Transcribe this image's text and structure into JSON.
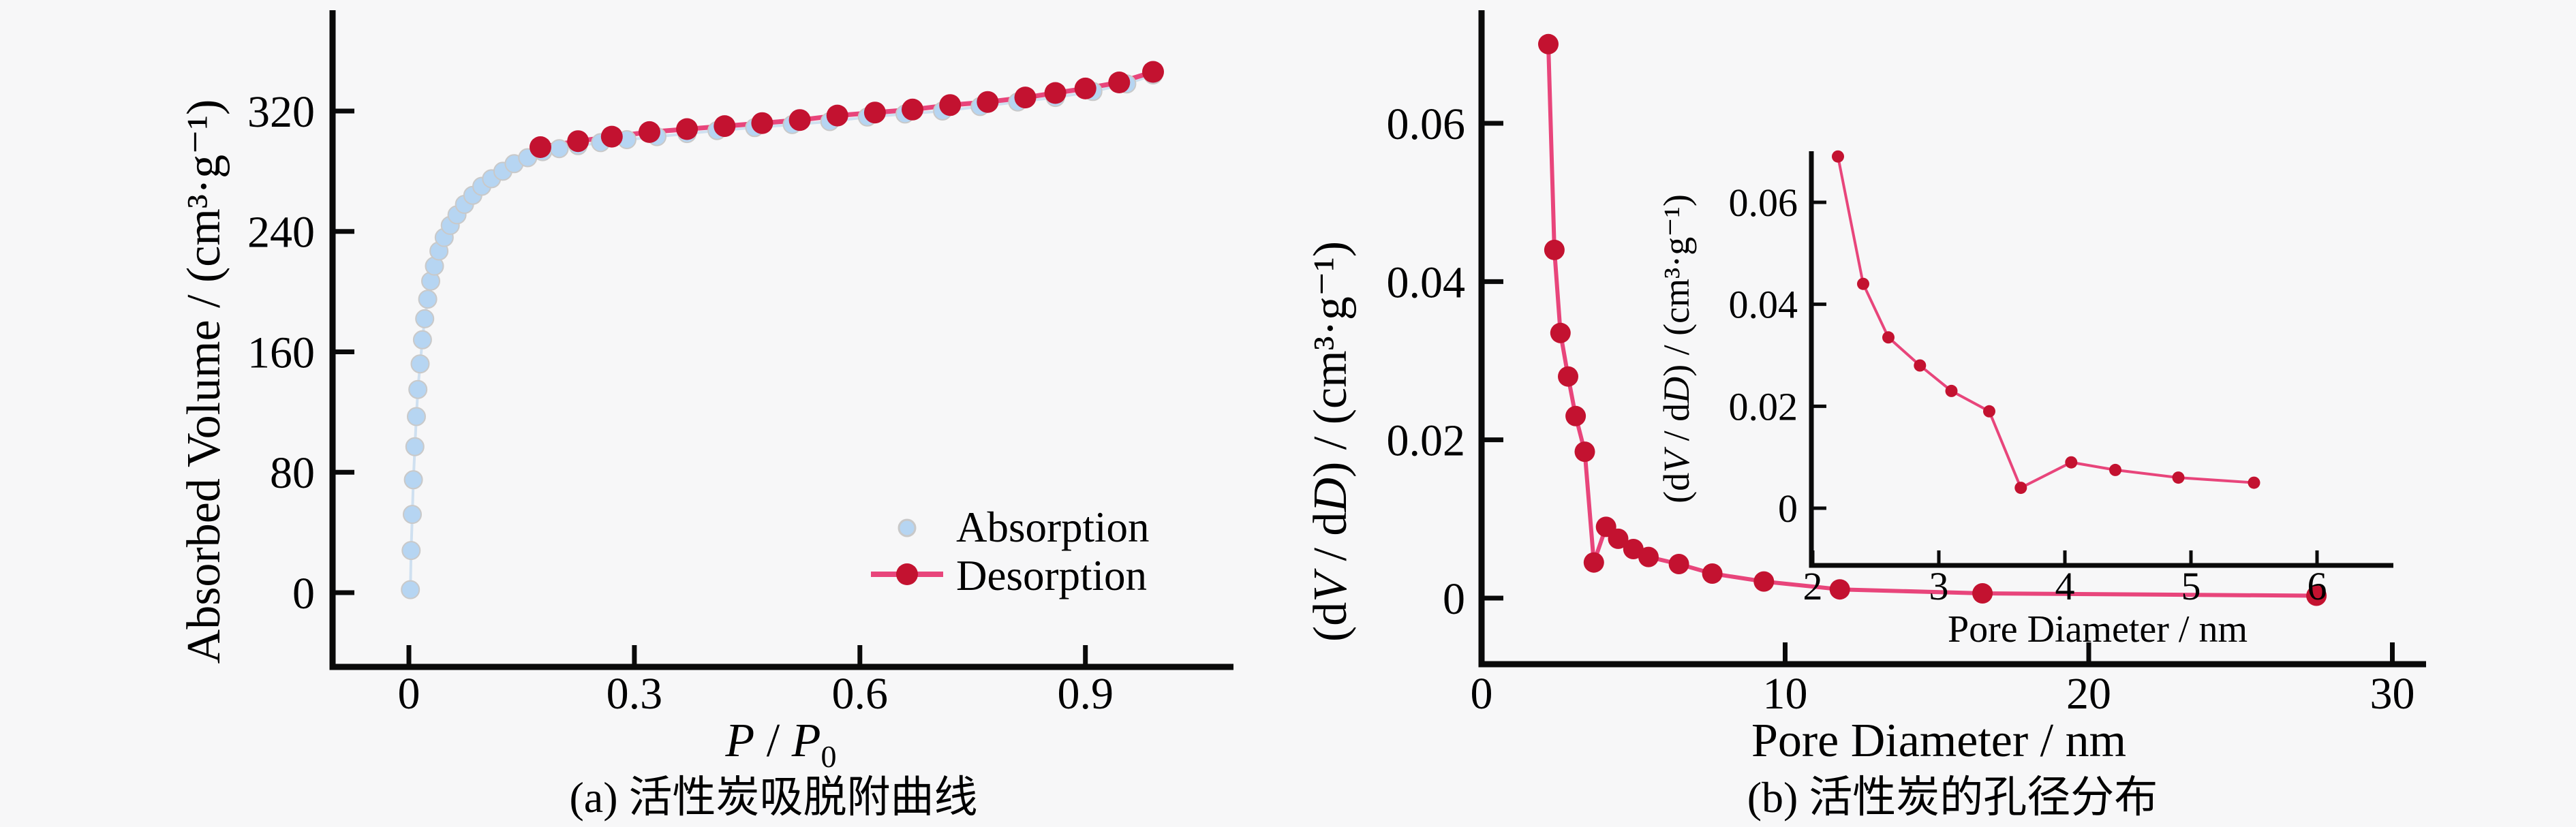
{
  "page": {
    "background": "#f7f7f8"
  },
  "colors": {
    "absorption_marker": "#b6d5f2",
    "absorption_marker_edge": "#c9c9c9",
    "absorption_line": "#cfe0f0",
    "desorption_marker": "#c31230",
    "desorption_line": "#e8457b",
    "axis": "#0a0a0a",
    "text": "#000000",
    "background": "#f7f7f8"
  },
  "charts": {
    "a": {
      "caption": "(a) 活性炭吸脱附曲线",
      "ylabel": "Absorbed Volume / (cm³·g⁻¹)",
      "xlabel": {
        "p1": "P",
        "sep": " / ",
        "p2": "P",
        "sub": "0"
      },
      "legend": {
        "absorption": "Absorption",
        "desorption": "Desorption"
      }
    },
    "b": {
      "caption": "(b) 活性炭的孔径分布",
      "xlabel": "Pore Diameter / nm",
      "inset_xlabel": "Pore Diameter / nm",
      "ylabel": {
        "p1": "(d",
        "v": "V",
        "p2": " / d",
        "d": "D",
        "p3": ") / (cm³·g⁻¹)"
      }
    }
  },
  "chart_data": [
    {
      "id": "a",
      "type": "scatter",
      "title": "(a) 活性炭吸脱附曲线",
      "xlabel": "P / P₀",
      "ylabel": "Absorbed Volume / (cm³·g⁻¹)",
      "xlim": [
        -0.1,
        1.12
      ],
      "ylim": [
        -50,
        395
      ],
      "grid": false,
      "legend_position": "lower right",
      "xtick_values": [
        0,
        0.3,
        0.6,
        0.9
      ],
      "xtick_labels": [
        "0",
        "0.3",
        "0.6",
        "0.9"
      ],
      "ytick_values": [
        0,
        80,
        160,
        240,
        320
      ],
      "ytick_labels": [
        "0",
        "80",
        "160",
        "240",
        "320"
      ],
      "series": [
        {
          "name": "Absorption",
          "marker": "circle",
          "color": "#b6d5f2",
          "line_color": "#cfe0f0",
          "points": [
            [
              0.002,
              2
            ],
            [
              0.003,
              28
            ],
            [
              0.0045,
              52
            ],
            [
              0.006,
              75
            ],
            [
              0.008,
              97
            ],
            [
              0.01,
              117
            ],
            [
              0.012,
              135
            ],
            [
              0.015,
              152
            ],
            [
              0.018,
              168
            ],
            [
              0.021,
              182
            ],
            [
              0.025,
              195
            ],
            [
              0.029,
              207
            ],
            [
              0.034,
              217
            ],
            [
              0.04,
              227
            ],
            [
              0.047,
              236
            ],
            [
              0.055,
              244
            ],
            [
              0.064,
              251
            ],
            [
              0.074,
              258
            ],
            [
              0.085,
              264
            ],
            [
              0.097,
              270
            ],
            [
              0.11,
              275
            ],
            [
              0.125,
              280
            ],
            [
              0.14,
              285
            ],
            [
              0.158,
              289
            ],
            [
              0.178,
              293
            ],
            [
              0.2,
              295
            ],
            [
              0.225,
              297
            ],
            [
              0.255,
              299
            ],
            [
              0.29,
              301
            ],
            [
              0.33,
              303
            ],
            [
              0.37,
              305
            ],
            [
              0.41,
              307
            ],
            [
              0.46,
              309
            ],
            [
              0.51,
              311
            ],
            [
              0.56,
              313
            ],
            [
              0.61,
              316
            ],
            [
              0.66,
              318
            ],
            [
              0.71,
              320
            ],
            [
              0.76,
              323
            ],
            [
              0.81,
              326
            ],
            [
              0.86,
              329
            ],
            [
              0.91,
              333
            ],
            [
              0.955,
              338
            ],
            [
              0.99,
              344
            ]
          ]
        },
        {
          "name": "Desorption",
          "marker": "circle",
          "color": "#c31230",
          "line_color": "#e8457b",
          "points": [
            [
              0.175,
              296
            ],
            [
              0.225,
              300
            ],
            [
              0.27,
              303
            ],
            [
              0.32,
              306
            ],
            [
              0.37,
              308
            ],
            [
              0.42,
              310
            ],
            [
              0.47,
              312
            ],
            [
              0.52,
              314
            ],
            [
              0.57,
              317
            ],
            [
              0.62,
              319
            ],
            [
              0.67,
              321
            ],
            [
              0.72,
              324
            ],
            [
              0.77,
              326
            ],
            [
              0.82,
              329
            ],
            [
              0.86,
              332
            ],
            [
              0.9,
              335
            ],
            [
              0.945,
              339
            ],
            [
              0.99,
              346
            ]
          ]
        }
      ]
    },
    {
      "id": "b",
      "type": "line",
      "title": "(b) 活性炭的孔径分布",
      "xlabel": "Pore Diameter / nm",
      "ylabel": "(dV / dD) / (cm³·g⁻¹)",
      "xlim": [
        0,
        31
      ],
      "ylim": [
        -0.009,
        0.0745
      ],
      "grid": false,
      "xtick_values": [
        0,
        10,
        20,
        30
      ],
      "xtick_labels": [
        "0",
        "10",
        "20",
        "30"
      ],
      "ytick_values": [
        0,
        0.02,
        0.04,
        0.06
      ],
      "ytick_labels": [
        "0",
        "0.02",
        "0.04",
        "0.06"
      ],
      "series": [
        {
          "name": "dV/dD",
          "marker": "circle",
          "color": "#c31230",
          "line_color": "#e8457b",
          "points": [
            [
              2.2,
              0.07
            ],
            [
              2.4,
              0.044
            ],
            [
              2.6,
              0.0335
            ],
            [
              2.85,
              0.028
            ],
            [
              3.1,
              0.023
            ],
            [
              3.4,
              0.0185
            ],
            [
              3.7,
              0.0045
            ],
            [
              4.1,
              0.009
            ],
            [
              4.5,
              0.0075
            ],
            [
              5.0,
              0.0062
            ],
            [
              5.5,
              0.0052
            ],
            [
              6.5,
              0.0043
            ],
            [
              7.6,
              0.0031
            ],
            [
              9.3,
              0.0021
            ],
            [
              11.8,
              0.0011
            ],
            [
              16.5,
              0.0006
            ],
            [
              27.5,
              0.0003
            ]
          ]
        }
      ],
      "inset": {
        "xlabel": "Pore Diameter / nm",
        "ylabel": "(dV / dD) / (cm³·g⁻¹)",
        "xlim": [
          2,
          6.2
        ],
        "ylim": [
          -0.011,
          0.075
        ],
        "xtick_values": [
          2,
          3,
          4,
          5,
          6
        ],
        "xtick_labels": [
          "2",
          "3",
          "4",
          "5",
          "6"
        ],
        "ytick_values": [
          0,
          0.02,
          0.04,
          0.06
        ],
        "ytick_labels": [
          "0",
          "0.02",
          "0.04",
          "0.06"
        ],
        "series": [
          {
            "name": "dV/dD",
            "marker": "circle",
            "color": "#c31230",
            "line_color": "#e8457b",
            "points": [
              [
                2.2,
                0.069
              ],
              [
                2.4,
                0.044
              ],
              [
                2.6,
                0.0335
              ],
              [
                2.85,
                0.028
              ],
              [
                3.1,
                0.023
              ],
              [
                3.4,
                0.019
              ],
              [
                3.65,
                0.004
              ],
              [
                4.05,
                0.009
              ],
              [
                4.4,
                0.0075
              ],
              [
                4.9,
                0.006
              ],
              [
                5.5,
                0.005
              ]
            ]
          }
        ]
      }
    }
  ]
}
